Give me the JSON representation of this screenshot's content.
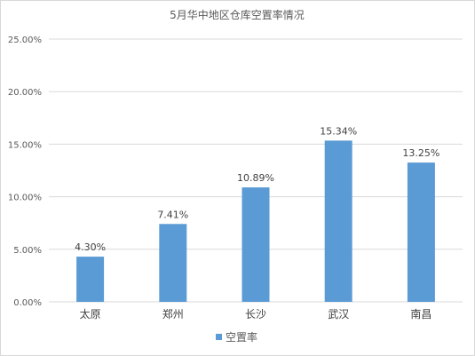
{
  "chart_data": {
    "type": "bar",
    "title": "5月华中地区仓库空置率情况",
    "categories": [
      "太原",
      "郑州",
      "长沙",
      "武汉",
      "南昌"
    ],
    "series": [
      {
        "name": "空置率",
        "values": [
          4.3,
          7.41,
          10.89,
          15.34,
          13.25
        ],
        "color": "#5b9bd5"
      }
    ],
    "value_labels": [
      "4.30%",
      "7.41%",
      "10.89%",
      "15.34%",
      "13.25%"
    ],
    "y_ticks": [
      "0.00%",
      "5.00%",
      "10.00%",
      "15.00%",
      "20.00%",
      "25.00%"
    ],
    "ylim": [
      0,
      25
    ],
    "grid": true,
    "legend_position": "bottom",
    "grid_color": "#d9d9d9"
  }
}
